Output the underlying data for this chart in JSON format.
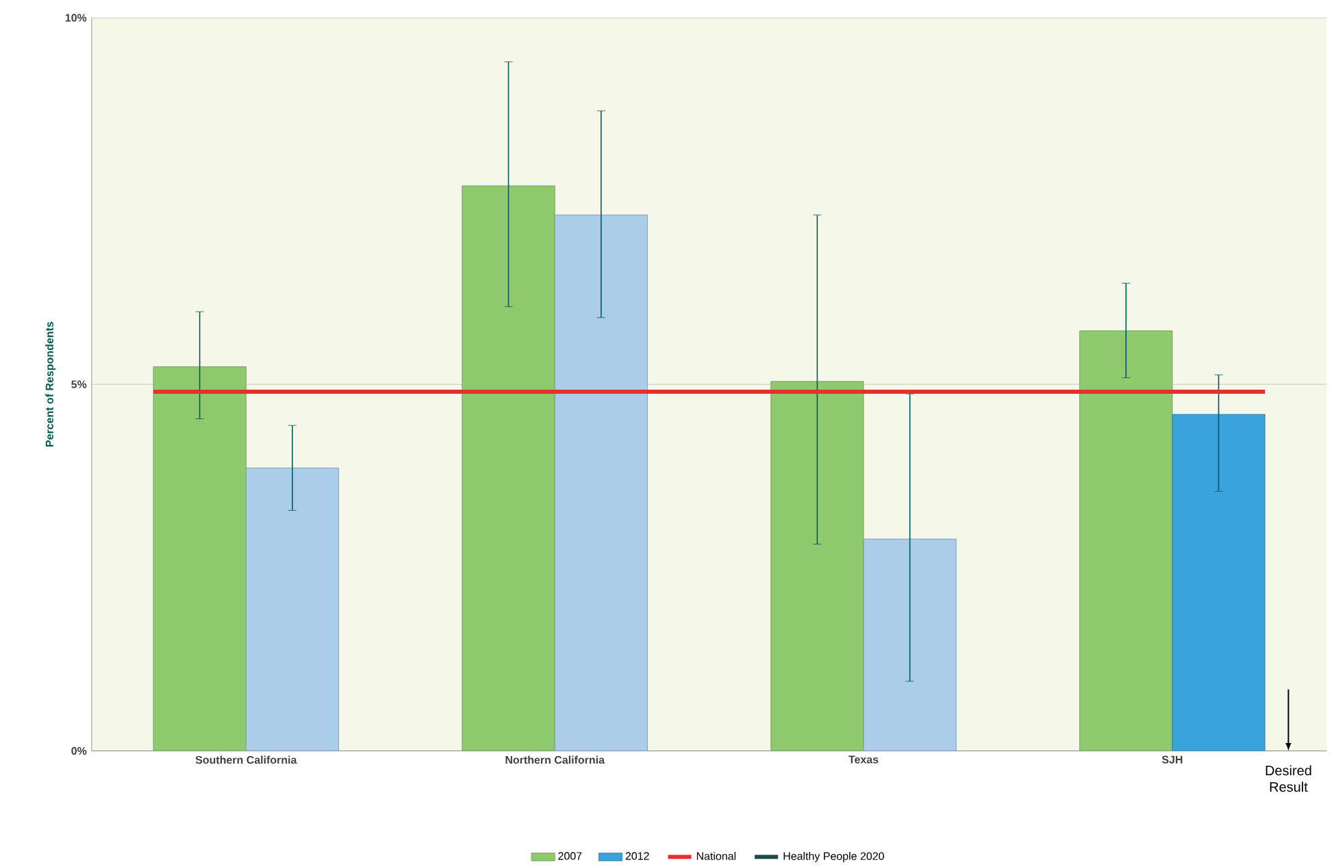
{
  "chart_data": {
    "type": "bar",
    "ylabel": "Percent of Respondents",
    "categories": [
      "Southern California",
      "Northern California",
      "Texas",
      "SJH"
    ],
    "series": [
      {
        "name": "2007",
        "color": "#8fca6e",
        "values": [
          5.24,
          7.71,
          5.04,
          5.73
        ],
        "errors": [
          [
            4.53,
            5.99
          ],
          [
            6.06,
            9.4
          ],
          [
            2.82,
            7.31
          ],
          [
            5.09,
            6.38
          ]
        ]
      },
      {
        "name": "2012",
        "color": "#3ba3dc",
        "colors": [
          "#aacde9",
          "#aacde9",
          "#aacde9",
          "#3ba3dc"
        ],
        "values": [
          3.86,
          7.31,
          2.89,
          4.59
        ],
        "errors": [
          [
            3.28,
            4.44
          ],
          [
            5.91,
            8.73
          ],
          [
            0.95,
            4.87
          ],
          [
            3.54,
            5.13
          ]
        ]
      },
      {
        "name": "Healthy People 2020",
        "type": "line",
        "color": "#1f4e4a",
        "values": [
          null,
          null,
          null,
          null
        ]
      }
    ],
    "ref_lines": [
      {
        "axis": "y",
        "value": 4.9,
        "label": "National",
        "color": "#e8302a"
      }
    ],
    "ylim": [
      0,
      10
    ],
    "yticks": [
      {
        "value": 0,
        "label": "0%"
      },
      {
        "value": 5,
        "label": "5%"
      },
      {
        "value": 10,
        "label": "10%"
      }
    ],
    "grid": "y",
    "legend": "bottom",
    "annotations": [
      "Desired Result"
    ]
  }
}
